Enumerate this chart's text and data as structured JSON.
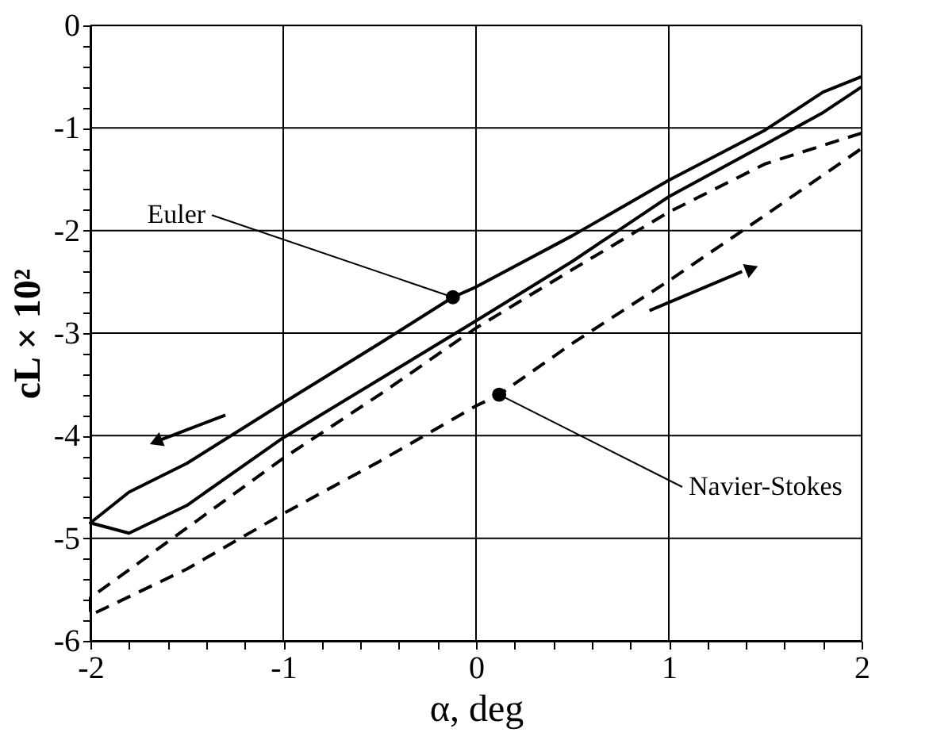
{
  "chart_data": {
    "type": "line",
    "xlabel": "α, deg",
    "ylabel": "cL × 10²",
    "xlim": [
      -2,
      2
    ],
    "ylim": [
      -6,
      0
    ],
    "xticks": [
      -2,
      {
        "value": -1.8,
        "label": null
      },
      {
        "value": -1.6,
        "label": null
      },
      {
        "value": -1.4,
        "label": null
      },
      {
        "value": -1.2,
        "label": null
      },
      -1,
      {
        "value": -0.8,
        "label": null
      },
      {
        "value": -0.6,
        "label": null
      },
      {
        "value": -0.4,
        "label": null
      },
      {
        "value": -0.2,
        "label": null
      },
      0,
      {
        "value": 0.2,
        "label": null
      },
      {
        "value": 0.4,
        "label": null
      },
      {
        "value": 0.6,
        "label": null
      },
      {
        "value": 0.8,
        "label": null
      },
      1,
      {
        "value": 1.2,
        "label": null
      },
      {
        "value": 1.4,
        "label": null
      },
      {
        "value": 1.6,
        "label": null
      },
      {
        "value": 1.8,
        "label": null
      },
      2
    ],
    "yticks": [
      -6,
      {
        "value": -5.8,
        "label": null
      },
      {
        "value": -5.6,
        "label": null
      },
      {
        "value": -5.4,
        "label": null
      },
      {
        "value": -5.2,
        "label": null
      },
      -5,
      {
        "value": -4.8,
        "label": null
      },
      {
        "value": -4.6,
        "label": null
      },
      {
        "value": -4.4,
        "label": null
      },
      {
        "value": -4.2,
        "label": null
      },
      -4,
      {
        "value": -3.8,
        "label": null
      },
      {
        "value": -3.6,
        "label": null
      },
      {
        "value": -3.4,
        "label": null
      },
      {
        "value": -3.2,
        "label": null
      },
      -3,
      {
        "value": -2.8,
        "label": null
      },
      {
        "value": -2.6,
        "label": null
      },
      {
        "value": -2.4,
        "label": null
      },
      {
        "value": -2.2,
        "label": null
      },
      -2,
      {
        "value": -1.8,
        "label": null
      },
      {
        "value": -1.6,
        "label": null
      },
      {
        "value": -1.4,
        "label": null
      },
      {
        "value": -1.2,
        "label": null
      },
      -1,
      {
        "value": -0.8,
        "label": null
      },
      {
        "value": -0.6,
        "label": null
      },
      {
        "value": -0.4,
        "label": null
      },
      {
        "value": -0.2,
        "label": null
      },
      0
    ],
    "grid": true,
    "marker": "none",
    "series": [
      {
        "color": "#000000",
        "line_style": "solid",
        "x": [
          2,
          1.8,
          1.5,
          1,
          0.5,
          0,
          -0.12,
          -0.5,
          -1,
          -1.5,
          -1.8,
          -2,
          -1.8,
          -1.5,
          -1,
          -0.5,
          0,
          0.5,
          1,
          1.5,
          1.8,
          2
        ],
        "values": [
          -0.5,
          -0.65,
          -1.02,
          -1.51,
          -2.05,
          -2.55,
          -2.65,
          -3.1,
          -3.68,
          -4.27,
          -4.55,
          -4.85,
          -4.95,
          -4.68,
          -4.02,
          -3.45,
          -2.88,
          -2.3,
          -1.67,
          -1.16,
          -0.85,
          -0.6
        ]
      },
      {
        "color": "#000000",
        "line_style": "dashed",
        "x": [
          2,
          1.5,
          1,
          0.5,
          0,
          -0.5,
          -1,
          -1.5,
          -2,
          -2,
          -1.5,
          -1,
          -0.5,
          0,
          0.12,
          0.5,
          1,
          1.5,
          2
        ],
        "values": [
          -1.05,
          -1.35,
          -1.82,
          -2.38,
          -2.95,
          -3.6,
          -4.22,
          -4.9,
          -5.58,
          -5.75,
          -5.3,
          -4.76,
          -4.25,
          -3.71,
          -3.6,
          -3.1,
          -2.49,
          -1.85,
          -1.2
        ]
      }
    ],
    "annotations": [
      {
        "text": "Euler",
        "x": -0.12,
        "y": -2.65
      },
      {
        "text": "Navier-Stokes",
        "x": 0.12,
        "y": -3.6
      }
    ]
  }
}
